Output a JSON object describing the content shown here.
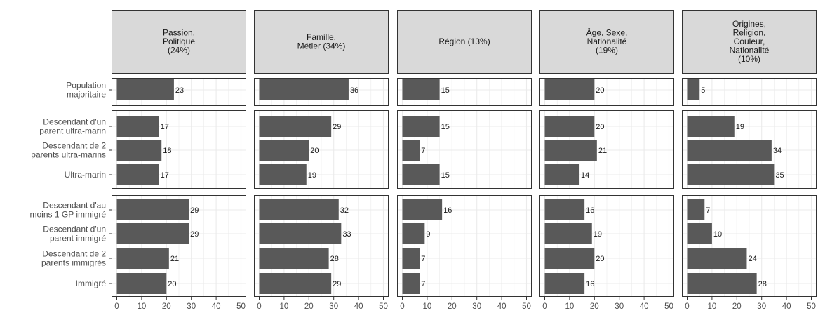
{
  "chart_data": {
    "type": "bar",
    "orientation": "horizontal",
    "facets": [
      {
        "label": "Passion,\nPolitique\n(24%)",
        "values": [
          23,
          17,
          18,
          17,
          29,
          29,
          21,
          20
        ]
      },
      {
        "label": "Famille,\nMétier (34%)",
        "values": [
          36,
          29,
          20,
          19,
          32,
          33,
          28,
          29
        ]
      },
      {
        "label": "Région (13%)",
        "values": [
          15,
          15,
          7,
          15,
          16,
          9,
          7,
          7
        ]
      },
      {
        "label": "Âge, Sexe,\nNationalité\n(19%)",
        "values": [
          20,
          20,
          21,
          14,
          16,
          19,
          20,
          16
        ]
      },
      {
        "label": "Origines,\nReligion,\nCouleur,\nNationalité\n(10%)",
        "values": [
          5,
          19,
          34,
          35,
          7,
          10,
          24,
          28
        ]
      }
    ],
    "groups": [
      {
        "rows": [
          "Population\nmajoritaire"
        ]
      },
      {
        "rows": [
          "Descendant d'un\nparent ultra-marin",
          "Descendant de 2\nparents ultra-marins",
          "Ultra-marin"
        ]
      },
      {
        "rows": [
          "Descendant d'au\nmoins 1 GP immigré",
          "Descendant d'un\nparent immigré",
          "Descendant de 2\nparents immigrés",
          "Immigré"
        ]
      }
    ],
    "xlim": [
      0,
      50
    ],
    "xticks": [
      0,
      10,
      20,
      30,
      40,
      50
    ],
    "grid": true,
    "bar_color": "#595959",
    "strip_color": "#d9d9d9",
    "grid_color": "#ebebeb",
    "panel_border_color": "#333333"
  }
}
